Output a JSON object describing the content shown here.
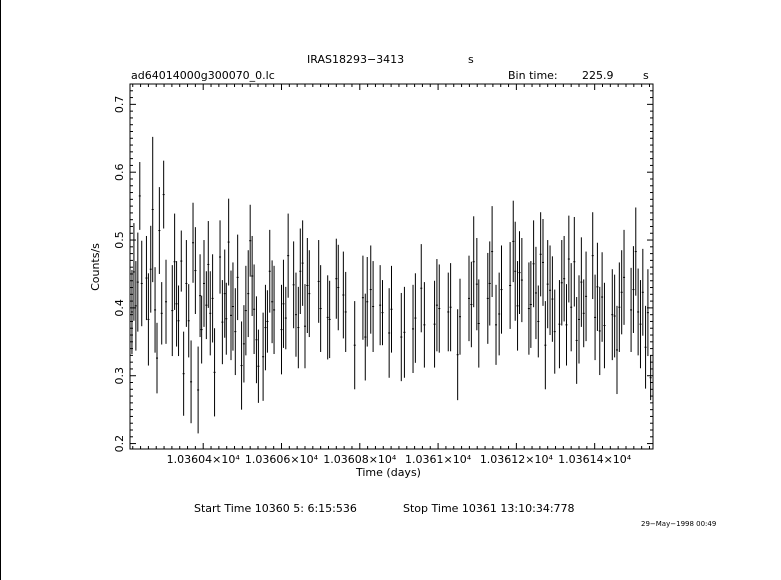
{
  "header": {
    "object": "IRAS18293−3413",
    "object_unit": "s",
    "file": "ad64014000g300070_0.lc",
    "bin_label": "Bin time:",
    "bin_value": "225.9",
    "bin_unit": "s"
  },
  "footer": {
    "start_time": "Start Time 10360  5: 6:15:536",
    "stop_time": "Stop Time 10361 13:10:34:778",
    "date_stamp": "29−May−1998 00:49"
  },
  "chart_data": {
    "type": "scatter",
    "xlabel": "Time (days)",
    "ylabel": "Counts/s",
    "xlim": [
      10360.213,
      10361.549
    ],
    "ylim": [
      0.192,
      0.73
    ],
    "xticks": [
      {
        "value": 10360.4,
        "label": "1.03604×10⁴"
      },
      {
        "value": 10360.6,
        "label": "1.03606×10⁴"
      },
      {
        "value": 10360.8,
        "label": "1.03608×10⁴"
      },
      {
        "value": 10361.0,
        "label": "1.0361×10⁴"
      },
      {
        "value": 10361.2,
        "label": "1.03612×10⁴"
      },
      {
        "value": 10361.4,
        "label": "1.03614×10⁴"
      }
    ],
    "yticks": [
      {
        "value": 0.2,
        "label": "0.2"
      },
      {
        "value": 0.3,
        "label": "0.3"
      },
      {
        "value": 0.4,
        "label": "0.4"
      },
      {
        "value": 0.5,
        "label": "0.5"
      },
      {
        "value": 0.6,
        "label": "0.6"
      },
      {
        "value": 0.7,
        "label": "0.7"
      }
    ],
    "series": [
      {
        "points": [
          [
            10360.218,
            0.394,
            0.062
          ],
          [
            10360.223,
            0.453,
            0.072
          ],
          [
            10360.228,
            0.403,
            0.066
          ],
          [
            10360.233,
            0.438,
            0.073
          ],
          [
            10360.238,
            0.565,
            0.05
          ],
          [
            10360.243,
            0.436,
            0.063
          ],
          [
            10360.255,
            0.444,
            0.062
          ],
          [
            10360.26,
            0.383,
            0.068
          ],
          [
            10360.266,
            0.457,
            0.064
          ],
          [
            10360.271,
            0.545,
            0.107
          ],
          [
            10360.277,
            0.397,
            0.063
          ],
          [
            10360.282,
            0.326,
            0.052
          ],
          [
            10360.288,
            0.514,
            0.064
          ],
          [
            10360.294,
            0.392,
            0.046
          ],
          [
            10360.299,
            0.567,
            0.05
          ],
          [
            10360.305,
            0.409,
            0.062
          ],
          [
            10360.321,
            0.396,
            0.067
          ],
          [
            10360.327,
            0.468,
            0.071
          ],
          [
            10360.332,
            0.406,
            0.063
          ],
          [
            10360.337,
            0.381,
            0.052
          ],
          [
            10360.344,
            0.469,
            0.045
          ],
          [
            10360.35,
            0.303,
            0.062
          ],
          [
            10360.357,
            0.436,
            0.064
          ],
          [
            10360.363,
            0.381,
            0.054
          ],
          [
            10360.369,
            0.291,
            0.061
          ],
          [
            10360.374,
            0.496,
            0.059
          ],
          [
            10360.38,
            0.455,
            0.064
          ],
          [
            10360.387,
            0.279,
            0.064
          ],
          [
            10360.392,
            0.418,
            0.061
          ],
          [
            10360.396,
            0.368,
            0.05
          ],
          [
            10360.402,
            0.436,
            0.064
          ],
          [
            10360.408,
            0.404,
            0.05
          ],
          [
            10360.413,
            0.464,
            0.064
          ],
          [
            10360.418,
            0.392,
            0.062
          ],
          [
            10360.424,
            0.414,
            0.065
          ],
          [
            10360.429,
            0.305,
            0.065
          ],
          [
            10360.443,
            0.475,
            0.054
          ],
          [
            10360.449,
            0.379,
            0.062
          ],
          [
            10360.455,
            0.421,
            0.065
          ],
          [
            10360.459,
            0.384,
            0.053
          ],
          [
            10360.465,
            0.497,
            0.064
          ],
          [
            10360.471,
            0.389,
            0.066
          ],
          [
            10360.476,
            0.402,
            0.065
          ],
          [
            10360.482,
            0.365,
            0.064
          ],
          [
            10360.488,
            0.445,
            0.063
          ],
          [
            10360.498,
            0.315,
            0.065
          ],
          [
            10360.504,
            0.347,
            0.057
          ],
          [
            10360.509,
            0.396,
            0.066
          ],
          [
            10360.515,
            0.421,
            0.064
          ],
          [
            10360.52,
            0.499,
            0.053
          ],
          [
            10360.525,
            0.447,
            0.059
          ],
          [
            10360.53,
            0.398,
            0.066
          ],
          [
            10360.536,
            0.353,
            0.064
          ],
          [
            10360.541,
            0.314,
            0.054
          ],
          [
            10360.553,
            0.328,
            0.065
          ],
          [
            10360.559,
            0.371,
            0.063
          ],
          [
            10360.564,
            0.38,
            0.046
          ],
          [
            10360.57,
            0.454,
            0.061
          ],
          [
            10360.576,
            0.409,
            0.061
          ],
          [
            10360.581,
            0.397,
            0.065
          ],
          [
            10360.6,
            0.368,
            0.066
          ],
          [
            10360.605,
            0.406,
            0.065
          ],
          [
            10360.611,
            0.385,
            0.046
          ],
          [
            10360.617,
            0.477,
            0.062
          ],
          [
            10360.631,
            0.434,
            0.064
          ],
          [
            10360.637,
            0.39,
            0.062
          ],
          [
            10360.643,
            0.371,
            0.06
          ],
          [
            10360.648,
            0.454,
            0.063
          ],
          [
            10360.654,
            0.466,
            0.063
          ],
          [
            10360.66,
            0.373,
            0.062
          ],
          [
            10360.666,
            0.433,
            0.07
          ],
          [
            10360.671,
            0.421,
            0.064
          ],
          [
            10360.695,
            0.439,
            0.061
          ],
          [
            10360.7,
            0.399,
            0.064
          ],
          [
            10360.718,
            0.386,
            0.062
          ],
          [
            10360.723,
            0.383,
            0.057
          ],
          [
            10360.74,
            0.443,
            0.059
          ],
          [
            10360.745,
            0.43,
            0.063
          ],
          [
            10360.758,
            0.419,
            0.064
          ],
          [
            10360.764,
            0.394,
            0.059
          ],
          [
            10360.787,
            0.345,
            0.065
          ],
          [
            10360.808,
            0.415,
            0.062
          ],
          [
            10360.814,
            0.357,
            0.064
          ],
          [
            10360.819,
            0.409,
            0.066
          ],
          [
            10360.828,
            0.427,
            0.065
          ],
          [
            10360.834,
            0.402,
            0.067
          ],
          [
            10360.852,
            0.404,
            0.059
          ],
          [
            10360.858,
            0.393,
            0.048
          ],
          [
            10360.875,
            0.363,
            0.066
          ],
          [
            10360.881,
            0.398,
            0.064
          ],
          [
            10360.906,
            0.357,
            0.065
          ],
          [
            10360.914,
            0.364,
            0.067
          ],
          [
            10360.936,
            0.369,
            0.065
          ],
          [
            10360.942,
            0.385,
            0.066
          ],
          [
            10360.957,
            0.429,
            0.065
          ],
          [
            10360.965,
            0.375,
            0.063
          ],
          [
            10360.991,
            0.376,
            0.064
          ],
          [
            10360.997,
            0.404,
            0.068
          ],
          [
            10361.003,
            0.399,
            0.065
          ],
          [
            10361.026,
            0.394,
            0.058
          ],
          [
            10361.032,
            0.401,
            0.065
          ],
          [
            10361.05,
            0.331,
            0.067
          ],
          [
            10361.056,
            0.387,
            0.056
          ],
          [
            10361.079,
            0.414,
            0.063
          ],
          [
            10361.085,
            0.405,
            0.063
          ],
          [
            10361.091,
            0.468,
            0.067
          ],
          [
            10361.099,
            0.435,
            0.068
          ],
          [
            10361.104,
            0.377,
            0.065
          ],
          [
            10361.127,
            0.414,
            0.067
          ],
          [
            10361.132,
            0.436,
            0.062
          ],
          [
            10361.138,
            0.483,
            0.067
          ],
          [
            10361.148,
            0.375,
            0.059
          ],
          [
            10361.156,
            0.391,
            0.061
          ],
          [
            10361.162,
            0.427,
            0.065
          ],
          [
            10361.184,
            0.433,
            0.064
          ],
          [
            10361.192,
            0.498,
            0.06
          ],
          [
            10361.197,
            0.454,
            0.073
          ],
          [
            10361.203,
            0.403,
            0.066
          ],
          [
            10361.208,
            0.452,
            0.061
          ],
          [
            10361.214,
            0.441,
            0.062
          ],
          [
            10361.232,
            0.399,
            0.068
          ],
          [
            10361.237,
            0.405,
            0.064
          ],
          [
            10361.244,
            0.465,
            0.064
          ],
          [
            10361.25,
            0.422,
            0.068
          ],
          [
            10361.256,
            0.38,
            0.053
          ],
          [
            10361.262,
            0.479,
            0.062
          ],
          [
            10361.268,
            0.467,
            0.064
          ],
          [
            10361.274,
            0.345,
            0.065
          ],
          [
            10361.28,
            0.435,
            0.065
          ],
          [
            10361.286,
            0.426,
            0.066
          ],
          [
            10361.292,
            0.413,
            0.063
          ],
          [
            10361.298,
            0.365,
            0.062
          ],
          [
            10361.31,
            0.376,
            0.065
          ],
          [
            10361.316,
            0.437,
            0.063
          ],
          [
            10361.322,
            0.443,
            0.063
          ],
          [
            10361.328,
            0.375,
            0.06
          ],
          [
            10361.334,
            0.472,
            0.064
          ],
          [
            10361.34,
            0.401,
            0.065
          ],
          [
            10361.348,
            0.468,
            0.066
          ],
          [
            10361.354,
            0.352,
            0.064
          ],
          [
            10361.36,
            0.383,
            0.065
          ],
          [
            10361.366,
            0.438,
            0.066
          ],
          [
            10361.372,
            0.392,
            0.05
          ],
          [
            10361.378,
            0.417,
            0.066
          ],
          [
            10361.395,
            0.477,
            0.064
          ],
          [
            10361.401,
            0.386,
            0.063
          ],
          [
            10361.407,
            0.431,
            0.065
          ],
          [
            10361.413,
            0.366,
            0.065
          ],
          [
            10361.419,
            0.416,
            0.066
          ],
          [
            10361.425,
            0.374,
            0.063
          ],
          [
            10361.445,
            0.39,
            0.067
          ],
          [
            10361.451,
            0.388,
            0.061
          ],
          [
            10361.457,
            0.338,
            0.065
          ],
          [
            10361.463,
            0.401,
            0.066
          ],
          [
            10361.469,
            0.423,
            0.062
          ],
          [
            10361.475,
            0.445,
            0.07
          ],
          [
            10361.493,
            0.397,
            0.062
          ],
          [
            10361.499,
            0.427,
            0.064
          ],
          [
            10361.505,
            0.483,
            0.065
          ],
          [
            10361.511,
            0.394,
            0.064
          ],
          [
            10361.517,
            0.376,
            0.065
          ],
          [
            10361.523,
            0.423,
            0.064
          ],
          [
            10361.53,
            0.342,
            0.061
          ],
          [
            10361.536,
            0.393,
            0.064
          ],
          [
            10361.543,
            0.297,
            0.033
          ]
        ]
      }
    ]
  }
}
